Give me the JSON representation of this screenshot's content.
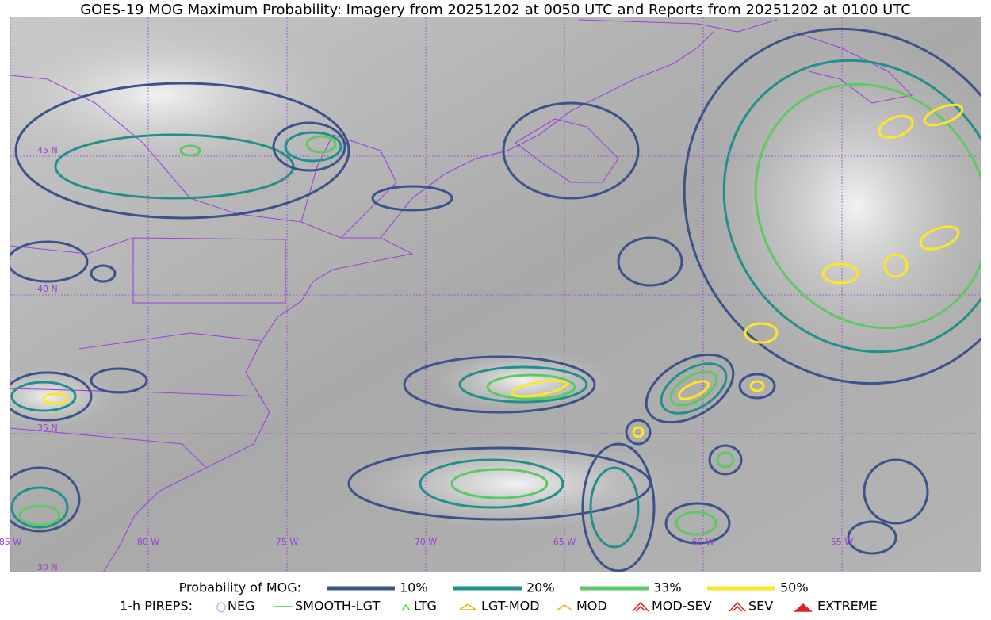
{
  "title": "GOES-19 MOG Maximum Probability: Imagery from 20251202 at 0050 UTC and Reports from 20251202 at 0100 UTC",
  "map": {
    "lat_labels": [
      "45 N",
      "40 N",
      "35 N",
      "30 N"
    ],
    "lon_labels": [
      "85 W",
      "80 W",
      "75 W",
      "70 W",
      "65 W",
      "60 W",
      "55 W"
    ]
  },
  "legend": {
    "label": "Probability of MOG:",
    "items": [
      {
        "label": "10%",
        "color": "#3b528b"
      },
      {
        "label": "20%",
        "color": "#21908c"
      },
      {
        "label": "33%",
        "color": "#5ec962"
      },
      {
        "label": "50%",
        "color": "#fde725"
      }
    ]
  },
  "pireps": {
    "label": "1-h PIREPS:",
    "items": [
      "NEG",
      "SMOOTH-LGT",
      "LTG",
      "LGT-MOD",
      "MOD",
      "MOD-SEV",
      "SEV",
      "EXTREME"
    ]
  }
}
